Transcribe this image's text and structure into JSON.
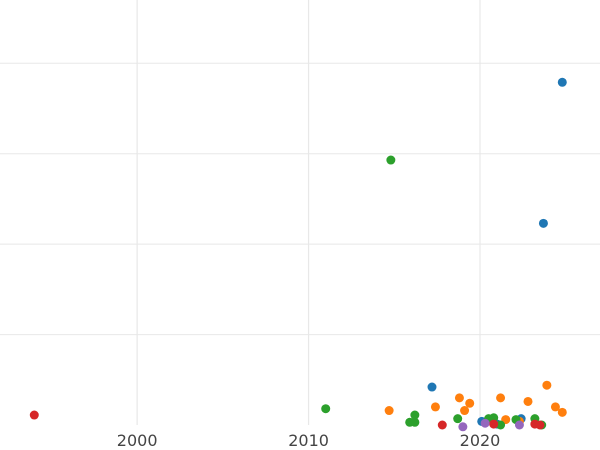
{
  "chart_data": {
    "type": "scatter",
    "title": "",
    "xlabel": "",
    "ylabel": "",
    "xlim": [
      1992,
      2027
    ],
    "ylim": [
      0,
      47
    ],
    "grid": true,
    "x_ticks": [
      2000,
      2010,
      2020
    ],
    "y_gridlines": [
      10,
      20,
      30,
      40
    ],
    "series": [
      {
        "color": "#1f77b4",
        "points": [
          [
            2024.8,
            37.9
          ],
          [
            2023.7,
            22.3
          ],
          [
            2017.2,
            4.2
          ],
          [
            2020.1,
            0.4
          ],
          [
            2022.4,
            0.7
          ],
          [
            2021.0,
            0.1
          ]
        ]
      },
      {
        "color": "#ff7f0e",
        "points": [
          [
            2014.7,
            1.6
          ],
          [
            2017.4,
            2.0
          ],
          [
            2018.8,
            3.0
          ],
          [
            2019.1,
            1.6
          ],
          [
            2019.4,
            2.4
          ],
          [
            2021.2,
            3.0
          ],
          [
            2021.5,
            0.6
          ],
          [
            2022.3,
            0.4
          ],
          [
            2022.8,
            2.6
          ],
          [
            2023.9,
            4.4
          ],
          [
            2024.4,
            2.0
          ],
          [
            2024.8,
            1.4
          ]
        ]
      },
      {
        "color": "#2ca02c",
        "points": [
          [
            2011.0,
            1.8
          ],
          [
            2014.8,
            29.3
          ],
          [
            2015.9,
            0.3
          ],
          [
            2016.2,
            0.3
          ],
          [
            2016.2,
            1.1
          ],
          [
            2018.7,
            0.7
          ],
          [
            2020.5,
            0.7
          ],
          [
            2020.8,
            0.8
          ],
          [
            2021.2,
            0.0
          ],
          [
            2022.1,
            0.6
          ],
          [
            2023.2,
            0.7
          ],
          [
            2023.6,
            0.0
          ]
        ]
      },
      {
        "color": "#d62728",
        "points": [
          [
            1994.0,
            1.1
          ],
          [
            2017.8,
            0.0
          ],
          [
            2020.8,
            0.1
          ],
          [
            2023.2,
            0.1
          ],
          [
            2023.5,
            0.0
          ]
        ]
      },
      {
        "color": "#9467bd",
        "points": [
          [
            2019.0,
            -0.2
          ],
          [
            2020.3,
            0.2
          ],
          [
            2022.3,
            0.0
          ]
        ]
      }
    ]
  }
}
